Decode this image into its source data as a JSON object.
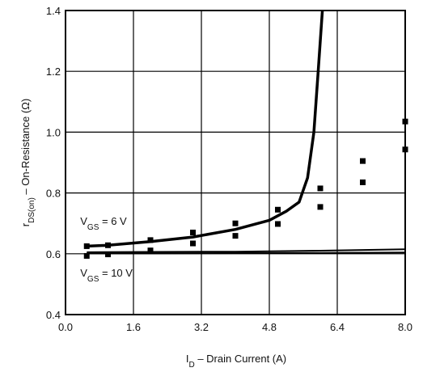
{
  "chart_data": {
    "type": "line",
    "xlabel": {
      "base": "I",
      "sub": "D",
      "rest": " – Drain Current (A)"
    },
    "ylabel": {
      "base": "r",
      "sub": "DS(on)",
      "rest": " – On-Resistance (Ω)"
    },
    "xlim": [
      0.0,
      8.0
    ],
    "ylim": [
      0.4,
      1.4
    ],
    "xticks": [
      "0.0",
      "1.6",
      "3.2",
      "4.8",
      "6.4",
      "8.0"
    ],
    "yticks": [
      "0.4",
      "0.6",
      "0.8",
      "1.0",
      "1.2",
      "1.4"
    ],
    "grid": true,
    "annotations": [
      {
        "base": "V",
        "sub": "GS",
        "rest": " = 6 V",
        "x": 0.5,
        "y": 0.695
      },
      {
        "base": "V",
        "sub": "GS",
        "rest": " = 10 V",
        "x": 0.5,
        "y": 0.525
      }
    ],
    "series": [
      {
        "style": "line",
        "x": [
          0.5,
          1.0,
          2.0,
          3.0,
          4.0,
          4.8,
          5.2,
          5.5,
          5.7,
          5.85,
          5.95,
          6.05
        ],
        "y": [
          0.625,
          0.628,
          0.64,
          0.655,
          0.68,
          0.71,
          0.74,
          0.77,
          0.85,
          1.0,
          1.2,
          1.4
        ]
      },
      {
        "style": "line",
        "x": [
          0.5,
          2.0,
          4.0,
          6.0,
          8.0
        ],
        "y": [
          0.605,
          0.606,
          0.607,
          0.61,
          0.615
        ]
      },
      {
        "style": "line",
        "x": [
          0.5,
          2.0,
          4.0,
          6.0,
          8.0
        ],
        "y": [
          0.601,
          0.601,
          0.602,
          0.603,
          0.604
        ]
      },
      {
        "style": "markers",
        "x": [
          0.5,
          1.0,
          2.0,
          3.0,
          4.0,
          5.0,
          6.0,
          7.0,
          8.0
        ],
        "y": [
          0.625,
          0.628,
          0.645,
          0.67,
          0.7,
          0.745,
          0.815,
          0.905,
          1.035
        ]
      },
      {
        "style": "markers",
        "x": [
          0.5,
          1.0,
          2.0,
          3.0,
          4.0,
          5.0,
          6.0,
          7.0,
          8.0
        ],
        "y": [
          0.593,
          0.598,
          0.611,
          0.634,
          0.659,
          0.698,
          0.754,
          0.835,
          0.943
        ]
      }
    ]
  }
}
